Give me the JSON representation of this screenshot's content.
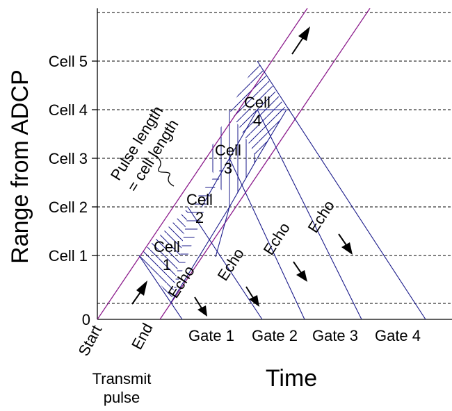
{
  "y_axis": {
    "label": "Range from ADCP",
    "ticks": [
      "0",
      "Cell 1",
      "Cell 2",
      "Cell 3",
      "Cell 4",
      "Cell 5"
    ]
  },
  "x_axis": {
    "label": "Time",
    "start_label": "Start",
    "end_label": "End",
    "caption_line1": "Transmit",
    "caption_line2": "pulse",
    "gates": [
      "Gate 1",
      "Gate 2",
      "Gate 3",
      "Gate 4"
    ]
  },
  "cells": {
    "word": "Cell",
    "numbers": [
      "1",
      "2",
      "3",
      "4"
    ]
  },
  "echo_label": "Echo",
  "pulse_note": {
    "line1": "Pulse length",
    "line2": "= cell length"
  },
  "colors": {
    "pulse_lines": "#8b1a8b",
    "echo_lines": "#1a1a8a",
    "hatch": "#1a1a8a",
    "grid": "#000000"
  }
}
